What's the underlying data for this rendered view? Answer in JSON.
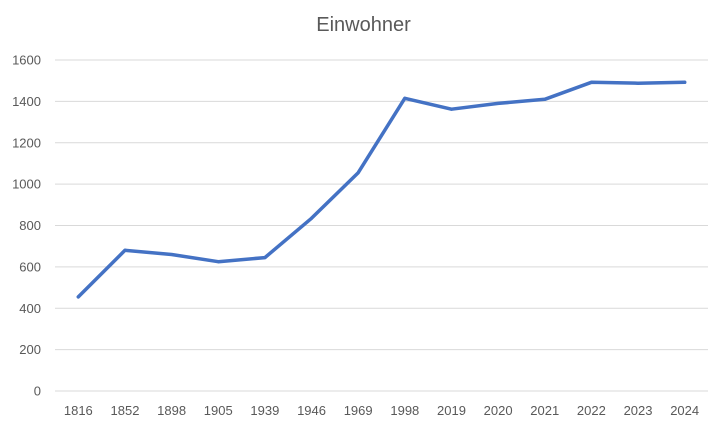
{
  "chart_data": {
    "type": "line",
    "title": "Einwohner",
    "xlabel": "",
    "ylabel": "",
    "categories": [
      "1816",
      "1852",
      "1898",
      "1905",
      "1939",
      "1946",
      "1969",
      "1998",
      "2019",
      "2020",
      "2021",
      "2022",
      "2023",
      "2024"
    ],
    "series": [
      {
        "values": [
          455,
          680,
          660,
          625,
          645,
          835,
          1055,
          1415,
          1362,
          1390,
          1410,
          1492,
          1488,
          1492
        ]
      }
    ],
    "ylim": [
      0,
      1600
    ],
    "yticks": [
      0,
      200,
      400,
      600,
      800,
      1000,
      1200,
      1400,
      1600
    ],
    "grid": true,
    "legend": "none",
    "colors": {
      "line": "#4472C4",
      "grid": "#d9d9d9",
      "text": "#595959"
    }
  }
}
